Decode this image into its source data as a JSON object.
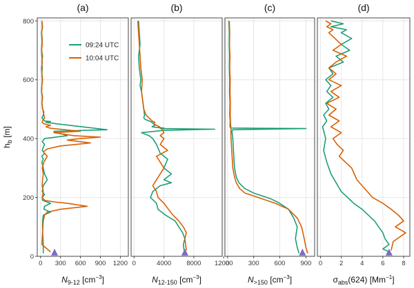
{
  "chart_data": [
    {
      "type": "line",
      "panel_label": "(a)",
      "xlabel_main": "N",
      "xlabel_sub": "9-12",
      "xlabel_unit_pre": " [cm",
      "xlabel_unit_sup": "−3",
      "xlabel_unit_post": "]",
      "xlim": [
        -50,
        1320
      ],
      "xticks": [
        0,
        300,
        600,
        900,
        1200
      ],
      "ylabel": "h",
      "ylabel_sub": "b",
      "ylabel_unit": " [m]",
      "ylim": [
        0,
        810
      ],
      "yticks": [
        0,
        200,
        400,
        600,
        800
      ],
      "marker": {
        "x": 210,
        "y": 12,
        "color": "#7b6cc0"
      },
      "legend": {
        "items": [
          "09:24 UTC",
          "10:04 UTC"
        ],
        "placement": "top-center"
      },
      "series": [
        {
          "name": "09:24 UTC",
          "color": "#1b9e77",
          "x": [
            20,
            30,
            15,
            25,
            20,
            15,
            30,
            20,
            25,
            20,
            30,
            20,
            15,
            30,
            20,
            30,
            50,
            40,
            20,
            40,
            60,
            150,
            80,
            250,
            1000,
            200,
            400,
            60,
            25,
            60,
            40,
            25,
            60,
            20,
            40,
            20,
            40,
            60,
            100,
            40,
            25,
            60,
            25,
            30,
            150,
            60,
            50,
            150,
            40,
            30,
            30,
            40,
            40
          ],
          "y": [
            800,
            780,
            760,
            740,
            720,
            700,
            680,
            660,
            640,
            620,
            600,
            580,
            560,
            540,
            520,
            500,
            490,
            480,
            470,
            465,
            460,
            458,
            455,
            450,
            430,
            425,
            410,
            400,
            390,
            380,
            370,
            360,
            350,
            340,
            330,
            320,
            300,
            280,
            260,
            240,
            220,
            210,
            200,
            190,
            180,
            170,
            160,
            150,
            140,
            120,
            90,
            40,
            10
          ]
        },
        {
          "name": "10:04 UTC",
          "color": "#d95f02",
          "x": [
            20,
            25,
            15,
            20,
            25,
            15,
            20,
            25,
            15,
            20,
            25,
            20,
            15,
            25,
            20,
            40,
            60,
            30,
            25,
            50,
            150,
            80,
            150,
            600,
            200,
            500,
            900,
            600,
            400,
            750,
            300,
            100,
            40,
            100,
            50,
            25,
            40,
            30,
            25,
            40,
            25,
            60,
            200,
            400,
            700,
            300,
            100,
            60,
            40,
            30,
            20,
            150
          ],
          "y": [
            800,
            780,
            760,
            740,
            720,
            700,
            680,
            660,
            640,
            620,
            600,
            580,
            560,
            540,
            520,
            490,
            470,
            460,
            455,
            450,
            445,
            440,
            435,
            425,
            420,
            410,
            405,
            400,
            395,
            385,
            375,
            365,
            355,
            340,
            320,
            300,
            280,
            260,
            240,
            220,
            200,
            190,
            185,
            180,
            170,
            160,
            150,
            140,
            120,
            80,
            40,
            15
          ]
        }
      ]
    },
    {
      "type": "line",
      "panel_label": "(b)",
      "xlabel_main": "N",
      "xlabel_sub": "12-150",
      "xlabel_unit_pre": " [cm",
      "xlabel_unit_sup": "−3",
      "xlabel_unit_post": "]",
      "xlim": [
        -400,
        11800
      ],
      "xticks": [
        0,
        4000,
        8000,
        12000
      ],
      "ylim": [
        0,
        810
      ],
      "yticks": [
        0,
        200,
        400,
        600,
        800
      ],
      "marker": {
        "x": 6800,
        "y": 12,
        "color": "#7b6cc0"
      },
      "series": [
        {
          "name": "09:24 UTC",
          "color": "#1b9e77",
          "x": [
            600,
            700,
            800,
            600,
            700,
            900,
            800,
            1000,
            1100,
            1200,
            1300,
            1400,
            1300,
            1500,
            2000,
            2400,
            2600,
            2800,
            2400,
            3000,
            4000,
            3500,
            10800,
            4000,
            1000,
            2000,
            2500,
            3000,
            3500,
            4500,
            4000,
            5000,
            4000,
            5000,
            3500,
            2500,
            2200,
            3000,
            3200,
            4200,
            5500,
            6000,
            6500,
            6800,
            6600,
            6700
          ],
          "y": [
            800,
            760,
            720,
            680,
            640,
            600,
            580,
            560,
            540,
            520,
            500,
            480,
            470,
            465,
            460,
            455,
            450,
            445,
            440,
            438,
            436,
            434,
            432,
            428,
            420,
            410,
            400,
            380,
            350,
            330,
            300,
            280,
            260,
            250,
            240,
            220,
            200,
            180,
            160,
            140,
            120,
            100,
            80,
            60,
            40,
            20
          ]
        },
        {
          "name": "10:04 UTC",
          "color": "#d95f02",
          "x": [
            500,
            600,
            700,
            800,
            900,
            1100,
            1000,
            1200,
            1300,
            1600,
            2000,
            2400,
            2800,
            2600,
            3000,
            3400,
            3800,
            4000,
            3500,
            4000,
            3500,
            4500,
            3000,
            3500,
            4000,
            3500,
            3000,
            2500,
            3000,
            3200,
            4000,
            4600,
            5200,
            6000,
            6600,
            7000,
            6800,
            7000
          ],
          "y": [
            800,
            760,
            720,
            680,
            640,
            600,
            560,
            520,
            500,
            480,
            470,
            460,
            455,
            450,
            445,
            440,
            430,
            420,
            410,
            400,
            380,
            360,
            340,
            320,
            300,
            280,
            260,
            240,
            220,
            200,
            180,
            160,
            140,
            120,
            100,
            80,
            60,
            20
          ]
        }
      ]
    },
    {
      "type": "line",
      "panel_label": "(c)",
      "xlabel_main": "N",
      "xlabel_sub": ">150",
      "xlabel_unit_pre": " [cm",
      "xlabel_unit_sup": "−3",
      "xlabel_unit_post": "]",
      "xlim": [
        -30,
        1000
      ],
      "xticks": [
        0,
        300,
        600,
        900
      ],
      "ylim": [
        0,
        810
      ],
      "yticks": [
        0,
        200,
        400,
        600,
        800
      ],
      "marker": {
        "x": 860,
        "y": 12,
        "color": "#7b6cc0"
      },
      "series": [
        {
          "name": "09:24 UTC",
          "color": "#1b9e77",
          "x": [
            15,
            20,
            18,
            22,
            20,
            25,
            22,
            28,
            25,
            30,
            28,
            35,
            40,
            900,
            60,
            50,
            60,
            70,
            80,
            100,
            130,
            200,
            300,
            400,
            500,
            600,
            700,
            760,
            800,
            780,
            800,
            820
          ],
          "y": [
            800,
            760,
            720,
            680,
            640,
            600,
            560,
            520,
            480,
            460,
            440,
            437,
            436,
            434,
            430,
            425,
            400,
            350,
            300,
            270,
            250,
            230,
            215,
            205,
            195,
            180,
            160,
            130,
            100,
            60,
            30,
            10
          ]
        },
        {
          "name": "10:04 UTC",
          "color": "#d95f02",
          "x": [
            20,
            25,
            22,
            28,
            25,
            30,
            28,
            32,
            30,
            35,
            40,
            38,
            40,
            50,
            60,
            80,
            100,
            140,
            200,
            300,
            400,
            550,
            700,
            800,
            850,
            880,
            900,
            920
          ],
          "y": [
            800,
            760,
            720,
            680,
            640,
            600,
            560,
            520,
            480,
            450,
            430,
            410,
            400,
            350,
            300,
            270,
            250,
            230,
            215,
            205,
            195,
            180,
            160,
            130,
            100,
            60,
            30,
            10
          ]
        }
      ]
    },
    {
      "type": "line",
      "panel_label": "(d)",
      "xlabel_main": "σ",
      "xlabel_sub": "abs",
      "xlabel_unit_pre": "(624) [Mm",
      "xlabel_unit_sup": "−1",
      "xlabel_unit_post": "]",
      "xlim": [
        -0.3,
        8.6
      ],
      "xticks": [
        0,
        2,
        4,
        6,
        8
      ],
      "ylim": [
        0,
        810
      ],
      "yticks": [
        0,
        200,
        400,
        600,
        800
      ],
      "marker": {
        "x": 6.6,
        "y": 12,
        "color": "#7b6cc0"
      },
      "series": [
        {
          "name": "09:24 UTC",
          "color": "#1b9e77",
          "x": [
            1.0,
            2.2,
            1.0,
            2.5,
            2.0,
            3.0,
            2.0,
            2.8,
            1.5,
            2.2,
            0.8,
            1.2,
            0.5,
            1.0,
            0.6,
            1.2,
            0.5,
            0.8,
            0.3,
            0.6,
            0.2,
            0.5,
            0.3,
            0.6,
            1.0,
            1.5,
            2.0,
            2.6,
            3.2,
            4.0,
            4.6,
            5.2,
            5.6,
            6.0,
            6.2,
            6.6,
            6.0,
            6.6
          ],
          "y": [
            800,
            790,
            780,
            770,
            760,
            740,
            720,
            700,
            680,
            660,
            640,
            620,
            600,
            580,
            560,
            540,
            520,
            500,
            480,
            460,
            440,
            400,
            360,
            320,
            280,
            250,
            220,
            200,
            180,
            160,
            140,
            120,
            100,
            80,
            60,
            40,
            25,
            15
          ]
        },
        {
          "name": "10:04 UTC",
          "color": "#d95f02",
          "x": [
            0.5,
            1.0,
            0.6,
            1.2,
            0.8,
            1.4,
            2.0,
            1.2,
            2.5,
            1.5,
            0.8,
            1.5,
            0.8,
            2.0,
            1.0,
            1.8,
            0.6,
            1.5,
            0.8,
            1.8,
            1.0,
            2.0,
            1.2,
            1.6,
            2.2,
            1.8,
            3.0,
            3.5,
            4.5,
            5.0,
            6.0,
            6.8,
            7.5,
            8.0,
            7.2,
            8.2,
            7.0,
            6.8
          ],
          "y": [
            800,
            790,
            780,
            770,
            760,
            740,
            720,
            700,
            680,
            660,
            640,
            620,
            600,
            580,
            560,
            540,
            520,
            500,
            480,
            460,
            440,
            420,
            400,
            380,
            360,
            340,
            300,
            260,
            220,
            200,
            180,
            160,
            140,
            120,
            100,
            80,
            50,
            20
          ]
        }
      ]
    }
  ]
}
